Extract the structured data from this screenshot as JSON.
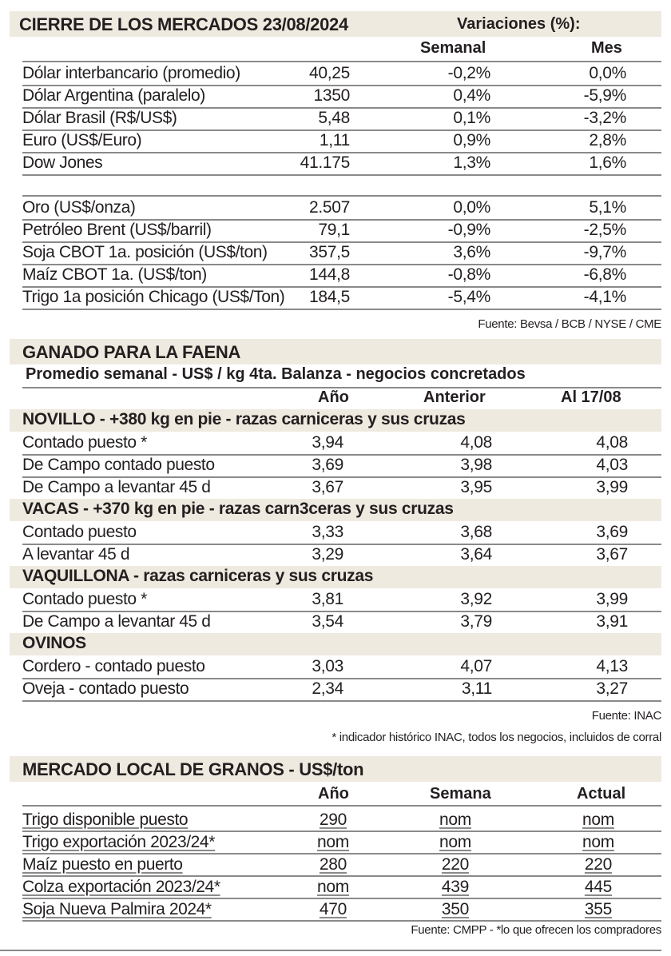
{
  "mercados": {
    "title": "CIERRE DE LOS MERCADOS 23/08/2024",
    "variaciones_label": "Variaciones (%):",
    "columns": [
      "Semanal",
      "Mes"
    ],
    "rows": [
      {
        "label": "Dólar interbancario (promedio)",
        "value": "40,25",
        "semanal": "-0,2%",
        "mes": "0,0%"
      },
      {
        "label": "Dólar Argentina (paralelo)",
        "value": "1350",
        "semanal": "0,4%",
        "mes": "-5,9%"
      },
      {
        "label": "Dólar Brasil (R$/US$)",
        "value": "5,48",
        "semanal": "0,1%",
        "mes": "-3,2%"
      },
      {
        "label": "Euro (US$/Euro)",
        "value": "1,11",
        "semanal": "0,9%",
        "mes": "2,8%"
      },
      {
        "label": "Dow Jones",
        "value": "41.175",
        "semanal": "1,3%",
        "mes": "1,6%"
      },
      {
        "label": "Oro (US$/onza)",
        "value": "2.507",
        "semanal": "0,0%",
        "mes": "5,1%"
      },
      {
        "label": "Petróleo Brent (US$/barril)",
        "value": "79,1",
        "semanal": "-0,9%",
        "mes": "-2,5%"
      },
      {
        "label": "Soja CBOT 1a. posición (US$/ton)",
        "value": "357,5",
        "semanal": "3,6%",
        "mes": "-9,7%"
      },
      {
        "label": "Maíz CBOT 1a. (US$/ton)",
        "value": "144,8",
        "semanal": "-0,8%",
        "mes": "-6,8%"
      },
      {
        "label": "Trigo 1a posición Chicago (US$/Ton)",
        "value": "184,5",
        "semanal": "-5,4%",
        "mes": "-4,1%"
      }
    ],
    "source": "Fuente: Bevsa / BCB / NYSE / CME"
  },
  "ganado": {
    "title": "GANADO PARA LA FAENA",
    "subtitle": "Promedio semanal - US$ / kg 4ta. Balanza - negocios concretados",
    "columns": [
      "Año",
      "Anterior",
      "Al 17/08"
    ],
    "groups": [
      {
        "title": "NOVILLO - +380 kg en pie - razas carniceras y sus cruzas",
        "rows": [
          {
            "label": "Contado puesto *",
            "anio": "3,94",
            "anterior": "4,08",
            "actual": "4,08"
          },
          {
            "label": "De Campo contado puesto",
            "anio": "3,69",
            "anterior": "3,98",
            "actual": "4,03"
          },
          {
            "label": "De Campo a levantar 45 d",
            "anio": "3,67",
            "anterior": "3,95",
            "actual": "3,99"
          }
        ]
      },
      {
        "title": "VACAS - +370 kg en pie - razas carn3ceras y sus cruzas",
        "rows": [
          {
            "label": "Contado puesto",
            "anio": "3,33",
            "anterior": "3,68",
            "actual": "3,69"
          },
          {
            "label": "A levantar 45 d",
            "anio": "3,29",
            "anterior": "3,64",
            "actual": "3,67"
          }
        ]
      },
      {
        "title": "VAQUILLONA - razas carniceras y sus cruzas",
        "rows": [
          {
            "label": "Contado puesto *",
            "anio": "3,81",
            "anterior": "3,92",
            "actual": "3,99"
          },
          {
            "label": "De Campo a levantar 45 d",
            "anio": "3,54",
            "anterior": "3,79",
            "actual": "3,91"
          }
        ]
      },
      {
        "title": "OVINOS",
        "rows": [
          {
            "label": "Cordero - contado puesto",
            "anio": "3,03",
            "anterior": "4,07",
            "actual": "4,13"
          },
          {
            "label": "Oveja - contado puesto",
            "anio": "2,34",
            "anterior": "3,11",
            "actual": "3,27"
          }
        ]
      }
    ],
    "source": "Fuente: INAC",
    "note": "* indicador histórico INAC, todos los negocios, incluidos de corral"
  },
  "granos": {
    "title": "MERCADO LOCAL DE GRANOS - US$/ton",
    "columns": [
      "Año",
      "Semana",
      "Actual"
    ],
    "rows": [
      {
        "label": "Trigo disponible puesto",
        "anio": "290",
        "semana": "nom",
        "actual": "nom"
      },
      {
        "label": "Trigo exportación 2023/24*",
        "anio": "nom",
        "semana": "nom",
        "actual": "nom"
      },
      {
        "label": "Maíz puesto en puerto",
        "anio": "280",
        "semana": "220",
        "actual": "220"
      },
      {
        "label": "Colza exportación 2023/24*",
        "anio": "nom",
        "semana": "439",
        "actual": "445"
      },
      {
        "label": "Soja Nueva Palmira 2024*",
        "anio": "470",
        "semana": "350",
        "actual": "355"
      }
    ],
    "source": "Fuente: CMPP - *lo que ofrecen los compradores"
  }
}
